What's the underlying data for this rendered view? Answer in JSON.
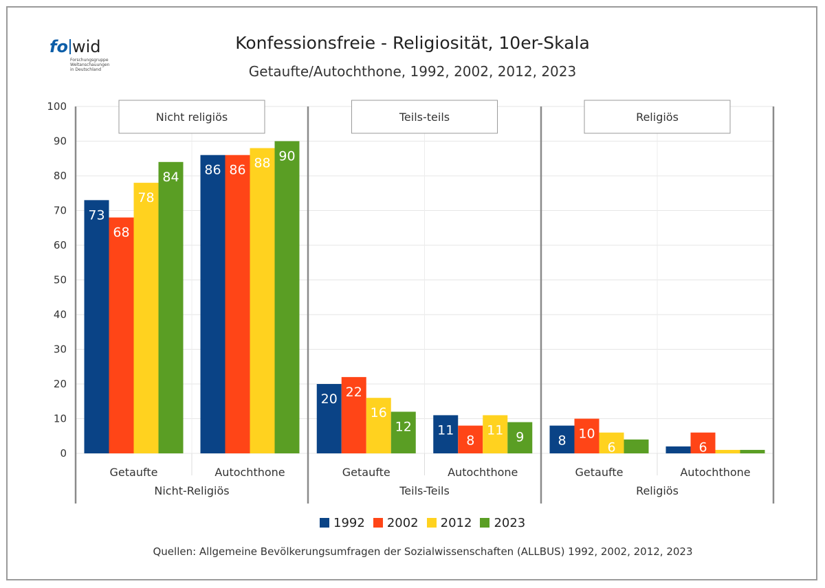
{
  "logo": {
    "text_fo": "fo",
    "text_wid": "wid",
    "tagline": [
      "Forschungsgruppe",
      "Weltanschauungen",
      "in Deutschland"
    ]
  },
  "title": "Konfessionsfreie - Religiosität, 10er-Skala",
  "subtitle": "Getaufte/Autochthone, 1992, 2002, 2012, 2023",
  "source": "Quellen: Allgemeine Bevölkerungsumfragen der Sozialwissenschaften (ALLBUS) 1992, 2002, 2012, 2023",
  "legend": [
    {
      "label": "1992",
      "color": "#0a4386"
    },
    {
      "label": "2002",
      "color": "#ff4517"
    },
    {
      "label": "2012",
      "color": "#ffd21f"
    },
    {
      "label": "2023",
      "color": "#5a9e24"
    }
  ],
  "chart_data": {
    "type": "bar",
    "ylim": [
      0,
      100
    ],
    "yticks": [
      0,
      10,
      20,
      30,
      40,
      50,
      60,
      70,
      80,
      90,
      100
    ],
    "grid": true,
    "legend_position": "bottom",
    "panels": [
      {
        "panel_title": "Nicht religiös",
        "group_label": "Nicht-Religiös",
        "categories": [
          "Getaufte",
          "Autochthone"
        ],
        "series": [
          {
            "name": "1992",
            "values": [
              73,
              86
            ],
            "labels": [
              "73",
              "86"
            ]
          },
          {
            "name": "2002",
            "values": [
              68,
              86
            ],
            "labels": [
              "68",
              "86"
            ]
          },
          {
            "name": "2012",
            "values": [
              78,
              88
            ],
            "labels": [
              "78",
              "88"
            ]
          },
          {
            "name": "2023",
            "values": [
              84,
              90
            ],
            "labels": [
              "84",
              "90"
            ]
          }
        ]
      },
      {
        "panel_title": "Teils-teils",
        "group_label": "Teils-Teils",
        "categories": [
          "Getaufte",
          "Autochthone"
        ],
        "series": [
          {
            "name": "1992",
            "values": [
              20,
              11
            ],
            "labels": [
              "20",
              "11"
            ]
          },
          {
            "name": "2002",
            "values": [
              22,
              8
            ],
            "labels": [
              "22",
              "8"
            ]
          },
          {
            "name": "2012",
            "values": [
              16,
              11
            ],
            "labels": [
              "16",
              "11"
            ]
          },
          {
            "name": "2023",
            "values": [
              12,
              9
            ],
            "labels": [
              "12",
              "9"
            ]
          }
        ]
      },
      {
        "panel_title": "Religiös",
        "group_label": "Religiös",
        "categories": [
          "Getaufte",
          "Autochthone"
        ],
        "series": [
          {
            "name": "1992",
            "values": [
              8,
              2
            ],
            "labels": [
              "8",
              ""
            ]
          },
          {
            "name": "2002",
            "values": [
              10,
              6
            ],
            "labels": [
              "10",
              "6"
            ]
          },
          {
            "name": "2012",
            "values": [
              6,
              1
            ],
            "labels": [
              "6",
              ""
            ]
          },
          {
            "name": "2023",
            "values": [
              4,
              1
            ],
            "labels": [
              "",
              ""
            ]
          }
        ]
      }
    ]
  }
}
